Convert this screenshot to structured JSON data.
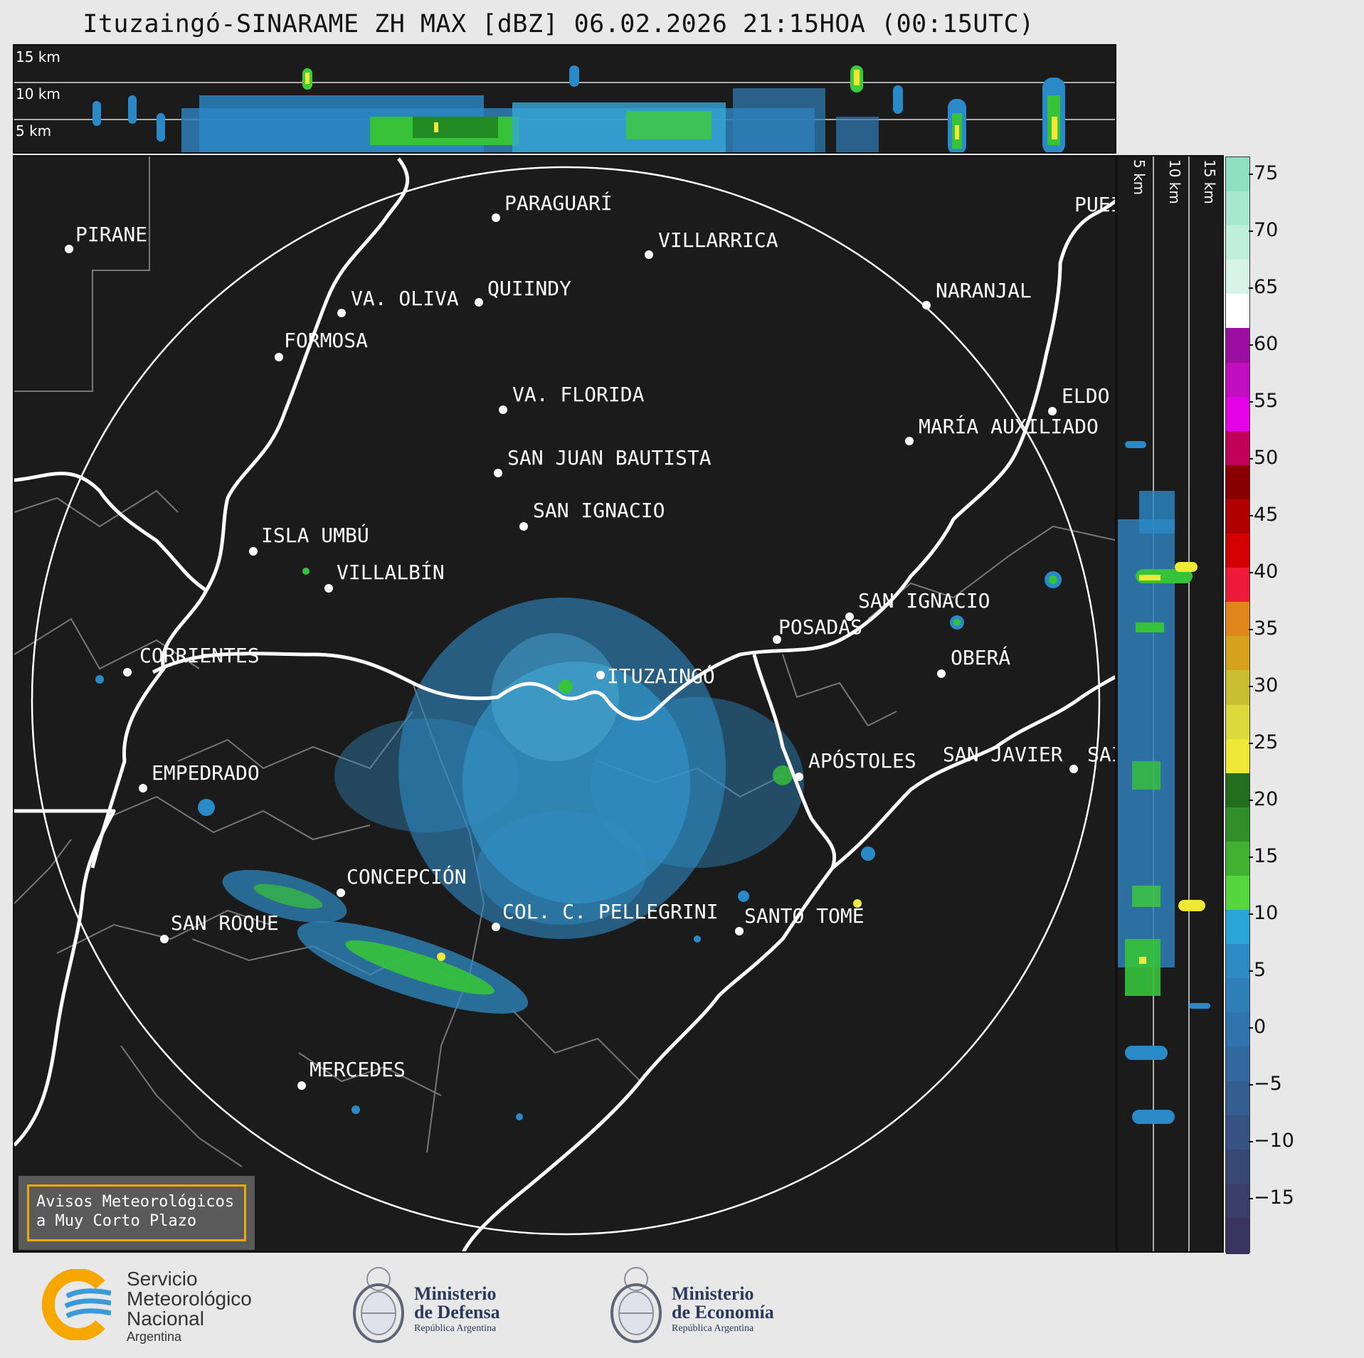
{
  "title": "Ituzaingó-SINARAME ZH MAX [dBZ] 06.02.2026 21:15HOA (00:15UTC)",
  "top_axis_labels": [
    "15 km",
    "10 km",
    "5 km"
  ],
  "side_axis_labels": [
    "5 km",
    "10 km",
    "15 km"
  ],
  "cities": [
    {
      "name": "PIRANE"
    },
    {
      "name": "PARAGUARÍ"
    },
    {
      "name": "VILLARRICA"
    },
    {
      "name": "VA. OLIVA"
    },
    {
      "name": "QUIINDY"
    },
    {
      "name": "FORMOSA"
    },
    {
      "name": "NARANJAL"
    },
    {
      "name": "PUEI"
    },
    {
      "name": "VA. FLORIDA"
    },
    {
      "name": "ELDO"
    },
    {
      "name": "MARÍA AUXILIADO"
    },
    {
      "name": "SAN JUAN BAUTISTA"
    },
    {
      "name": "SAN IGNACIO"
    },
    {
      "name": "ISLA UMBÚ"
    },
    {
      "name": "VILLALBÍN"
    },
    {
      "name": "SAN IGNACIO"
    },
    {
      "name": "POSADAS"
    },
    {
      "name": "CORRIENTES"
    },
    {
      "name": "ITUZAINGÓ"
    },
    {
      "name": "OBERÁ"
    },
    {
      "name": "EMPEDRADO"
    },
    {
      "name": "APÓSTOLES"
    },
    {
      "name": "SAN JAVIER"
    },
    {
      "name": "SAI"
    },
    {
      "name": "CONCEPCIÓN"
    },
    {
      "name": "COL. C. PELLEGRINI"
    },
    {
      "name": "SANTO TOMÉ"
    },
    {
      "name": "SAN ROQUE"
    },
    {
      "name": "MERCEDES"
    }
  ],
  "colorbar": {
    "unit": "dBZ",
    "ticks": [
      "75",
      "70",
      "65",
      "60",
      "55",
      "50",
      "45",
      "40",
      "35",
      "30",
      "25",
      "20",
      "15",
      "10",
      "5",
      "0",
      "−5",
      "−10",
      "−15"
    ]
  },
  "avisos": {
    "line1": "Avisos Meteorológicos",
    "line2": "a Muy Corto Plazo"
  },
  "logos": {
    "smn": {
      "line1": "Servicio",
      "line2": "Meteorológico",
      "line3": "Nacional",
      "line4": "Argentina"
    },
    "defensa": {
      "line1": "Ministerio",
      "line2": "de Defensa",
      "line3": "República Argentina"
    },
    "economia": {
      "line1": "Ministerio",
      "line2": "de Economía",
      "line3": "República Argentina"
    }
  },
  "colors": {
    "background": "#1b1b1b",
    "page": "#e8e8e8",
    "avisos_border": "#f0a800",
    "smn_orange": "#f6a800",
    "smn_blue": "#3a9bd8"
  }
}
